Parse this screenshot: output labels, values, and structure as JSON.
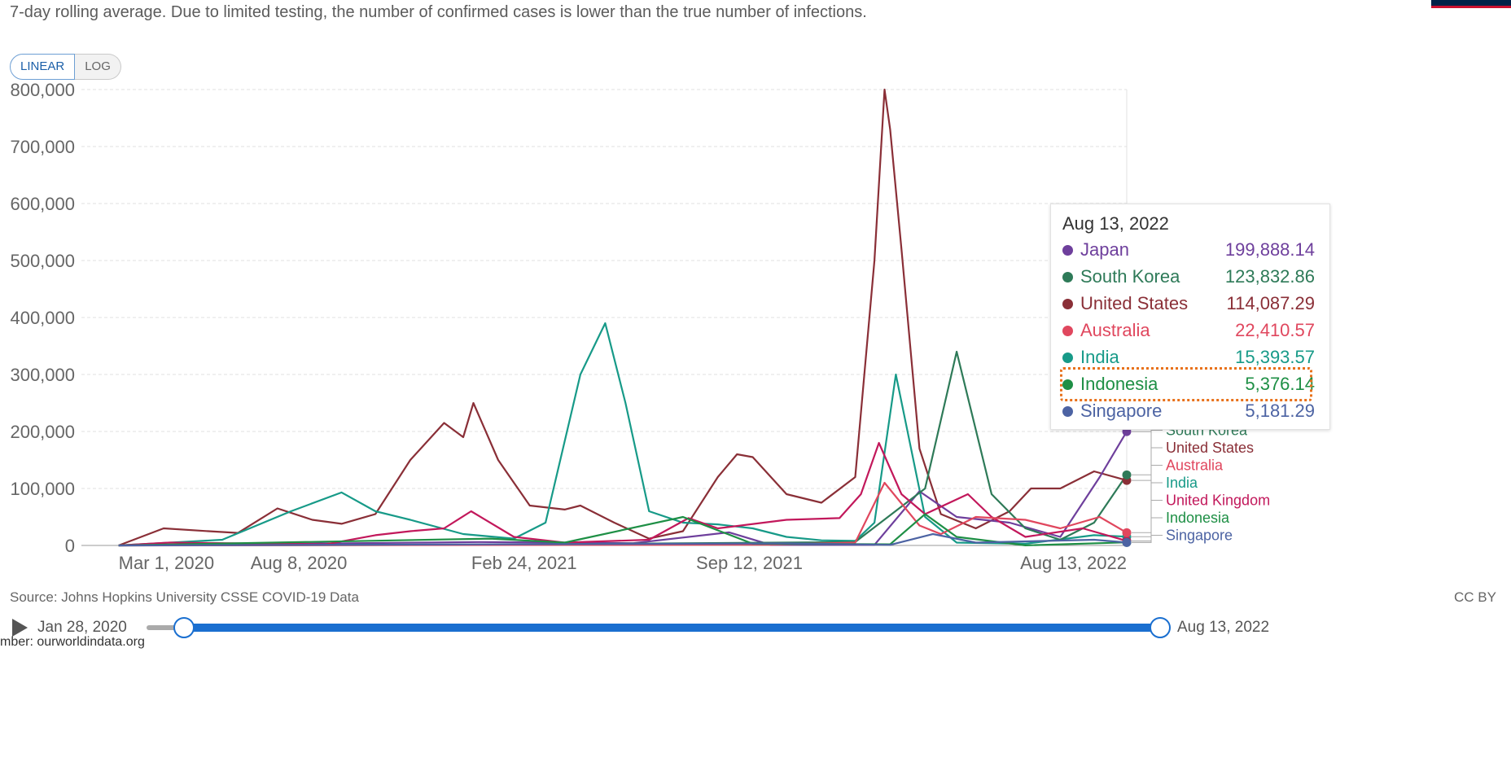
{
  "subtitle": "7-day rolling average. Due to limited testing, the number of confirmed cases is lower than the true number of infections.",
  "scale_toggle": {
    "linear": "LINEAR",
    "log": "LOG",
    "selected": "LINEAR"
  },
  "chart_data": {
    "type": "line",
    "title": "",
    "xlabel": "",
    "ylabel": "",
    "x_tick_labels": [
      "Mar 1, 2020",
      "Aug 8, 2020",
      "Feb 24, 2021",
      "Sep 12, 2021",
      "Aug 13, 2022"
    ],
    "y_tick_labels": [
      "0",
      "100,000",
      "200,000",
      "300,000",
      "400,000",
      "500,000",
      "600,000",
      "700,000",
      "800,000"
    ],
    "ylim": [
      0,
      800000
    ],
    "xlim": [
      "2020-01-28",
      "2022-08-13"
    ],
    "grid": "horizontal dashed",
    "series": [
      {
        "name": "United States",
        "color": "#8a2f37",
        "points": [
          [
            "2020-03-01",
            0
          ],
          [
            "2020-04-10",
            30000
          ],
          [
            "2020-05-20",
            25000
          ],
          [
            "2020-06-15",
            22000
          ],
          [
            "2020-07-20",
            65000
          ],
          [
            "2020-08-20",
            45000
          ],
          [
            "2020-09-15",
            38000
          ],
          [
            "2020-10-15",
            55000
          ],
          [
            "2020-11-15",
            150000
          ],
          [
            "2020-12-15",
            215000
          ],
          [
            "2021-01-01",
            190000
          ],
          [
            "2021-01-10",
            250000
          ],
          [
            "2021-02-01",
            150000
          ],
          [
            "2021-03-01",
            70000
          ],
          [
            "2021-04-01",
            63000
          ],
          [
            "2021-04-15",
            70000
          ],
          [
            "2021-05-15",
            40000
          ],
          [
            "2021-06-15",
            12000
          ],
          [
            "2021-07-15",
            25000
          ],
          [
            "2021-08-15",
            120000
          ],
          [
            "2021-09-01",
            160000
          ],
          [
            "2021-09-15",
            155000
          ],
          [
            "2021-10-15",
            90000
          ],
          [
            "2021-11-15",
            75000
          ],
          [
            "2021-12-15",
            120000
          ],
          [
            "2022-01-01",
            500000
          ],
          [
            "2022-01-10",
            800000
          ],
          [
            "2022-01-15",
            730000
          ],
          [
            "2022-01-25",
            520000
          ],
          [
            "2022-02-10",
            170000
          ],
          [
            "2022-03-01",
            55000
          ],
          [
            "2022-04-01",
            30000
          ],
          [
            "2022-05-01",
            60000
          ],
          [
            "2022-05-20",
            100000
          ],
          [
            "2022-06-15",
            100000
          ],
          [
            "2022-07-15",
            130000
          ],
          [
            "2022-08-13",
            114087.29
          ]
        ]
      },
      {
        "name": "India",
        "color": "#179a88",
        "points": [
          [
            "2020-03-01",
            0
          ],
          [
            "2020-06-01",
            10000
          ],
          [
            "2020-08-01",
            60000
          ],
          [
            "2020-09-15",
            93000
          ],
          [
            "2020-10-15",
            60000
          ],
          [
            "2020-11-15",
            45000
          ],
          [
            "2021-01-01",
            20000
          ],
          [
            "2021-02-15",
            12000
          ],
          [
            "2021-03-15",
            40000
          ],
          [
            "2021-04-15",
            300000
          ],
          [
            "2021-05-07",
            390000
          ],
          [
            "2021-05-25",
            250000
          ],
          [
            "2021-06-15",
            60000
          ],
          [
            "2021-07-15",
            40000
          ],
          [
            "2021-08-15",
            37000
          ],
          [
            "2021-09-15",
            30000
          ],
          [
            "2021-10-15",
            15000
          ],
          [
            "2021-11-15",
            9000
          ],
          [
            "2021-12-15",
            8000
          ],
          [
            "2022-01-01",
            40000
          ],
          [
            "2022-01-20",
            300000
          ],
          [
            "2022-02-15",
            50000
          ],
          [
            "2022-03-15",
            5000
          ],
          [
            "2022-05-15",
            3000
          ],
          [
            "2022-07-15",
            18000
          ],
          [
            "2022-08-13",
            15393.57
          ]
        ]
      },
      {
        "name": "Japan",
        "color": "#6e3f9c",
        "points": [
          [
            "2020-03-01",
            0
          ],
          [
            "2021-01-15",
            6000
          ],
          [
            "2021-06-01",
            4000
          ],
          [
            "2021-08-25",
            23000
          ],
          [
            "2021-10-01",
            1000
          ],
          [
            "2022-01-01",
            1000
          ],
          [
            "2022-02-10",
            95000
          ],
          [
            "2022-03-15",
            50000
          ],
          [
            "2022-05-01",
            40000
          ],
          [
            "2022-06-15",
            15000
          ],
          [
            "2022-07-20",
            120000
          ],
          [
            "2022-08-13",
            199888.14
          ]
        ]
      },
      {
        "name": "South Korea",
        "color": "#2e7a58",
        "points": [
          [
            "2020-03-01",
            0
          ],
          [
            "2021-01-01",
            1000
          ],
          [
            "2021-12-15",
            6000
          ],
          [
            "2022-02-15",
            100000
          ],
          [
            "2022-03-15",
            340000
          ],
          [
            "2022-04-15",
            90000
          ],
          [
            "2022-05-15",
            30000
          ],
          [
            "2022-06-15",
            10000
          ],
          [
            "2022-07-15",
            40000
          ],
          [
            "2022-08-13",
            123832.86
          ]
        ]
      },
      {
        "name": "United Kingdom",
        "color": "#c2185b",
        "points": [
          [
            "2020-03-01",
            0
          ],
          [
            "2020-04-15",
            5000
          ],
          [
            "2020-09-01",
            2000
          ],
          [
            "2020-10-15",
            18000
          ],
          [
            "2020-11-15",
            25000
          ],
          [
            "2020-12-15",
            30000
          ],
          [
            "2021-01-08",
            60000
          ],
          [
            "2021-02-15",
            15000
          ],
          [
            "2021-04-01",
            5000
          ],
          [
            "2021-06-15",
            10000
          ],
          [
            "2021-07-20",
            48000
          ],
          [
            "2021-08-15",
            30000
          ],
          [
            "2021-10-15",
            45000
          ],
          [
            "2021-12-01",
            48000
          ],
          [
            "2021-12-20",
            90000
          ],
          [
            "2022-01-05",
            180000
          ],
          [
            "2022-01-25",
            90000
          ],
          [
            "2022-02-15",
            55000
          ],
          [
            "2022-03-25",
            90000
          ],
          [
            "2022-04-15",
            50000
          ],
          [
            "2022-05-15",
            15000
          ],
          [
            "2022-07-05",
            30000
          ],
          [
            "2022-08-13",
            8000
          ]
        ]
      },
      {
        "name": "Australia",
        "color": "#e0475e",
        "points": [
          [
            "2020-03-01",
            0
          ],
          [
            "2021-10-01",
            1500
          ],
          [
            "2021-12-15",
            5000
          ],
          [
            "2022-01-10",
            110000
          ],
          [
            "2022-02-10",
            35000
          ],
          [
            "2022-03-01",
            20000
          ],
          [
            "2022-04-01",
            50000
          ],
          [
            "2022-05-15",
            45000
          ],
          [
            "2022-06-15",
            30000
          ],
          [
            "2022-07-20",
            50000
          ],
          [
            "2022-08-13",
            22410.57
          ]
        ]
      },
      {
        "name": "Indonesia",
        "color": "#1e8f45",
        "points": [
          [
            "2020-03-01",
            0
          ],
          [
            "2021-01-25",
            12000
          ],
          [
            "2021-04-01",
            5000
          ],
          [
            "2021-07-15",
            50000
          ],
          [
            "2021-09-15",
            3000
          ],
          [
            "2022-01-15",
            2000
          ],
          [
            "2022-02-15",
            55000
          ],
          [
            "2022-03-15",
            15000
          ],
          [
            "2022-05-15",
            200
          ],
          [
            "2022-08-13",
            5376.14
          ]
        ]
      },
      {
        "name": "Singapore",
        "color": "#4c63a3",
        "points": [
          [
            "2020-03-01",
            0
          ],
          [
            "2021-10-15",
            3500
          ],
          [
            "2022-01-15",
            1000
          ],
          [
            "2022-02-22",
            20000
          ],
          [
            "2022-04-01",
            5000
          ],
          [
            "2022-07-15",
            10000
          ],
          [
            "2022-08-13",
            5181.29
          ]
        ]
      }
    ],
    "end_labels": [
      "Japan",
      "South Korea",
      "United States",
      "Australia",
      "India",
      "United Kingdom",
      "Indonesia",
      "Singapore"
    ],
    "end_label_colors": [
      "#6e3f9c",
      "#2e7a58",
      "#8a2f37",
      "#e0475e",
      "#179a88",
      "#c2185b",
      "#1e8f45",
      "#4c63a3"
    ]
  },
  "tooltip": {
    "date": "Aug 13, 2022",
    "rows": [
      {
        "name": "Japan",
        "value": "199,888.14",
        "color": "#6e3f9c"
      },
      {
        "name": "South Korea",
        "value": "123,832.86",
        "color": "#2e7a58"
      },
      {
        "name": "United States",
        "value": "114,087.29",
        "color": "#8a2f37"
      },
      {
        "name": "Australia",
        "value": "22,410.57",
        "color": "#e0475e"
      },
      {
        "name": "India",
        "value": "15,393.57",
        "color": "#179a88"
      },
      {
        "name": "Indonesia",
        "value": "5,376.14",
        "color": "#1e8f45"
      },
      {
        "name": "Singapore",
        "value": "5,181.29",
        "color": "#4c63a3"
      }
    ]
  },
  "footer": {
    "source": "Source: Johns Hopkins University CSSE COVID-19 Data",
    "license": "CC BY"
  },
  "timeline": {
    "start_label": "Jan 28, 2020",
    "end_label": "Aug 13, 2022"
  },
  "watermark": "mber: ourworldindata.org"
}
